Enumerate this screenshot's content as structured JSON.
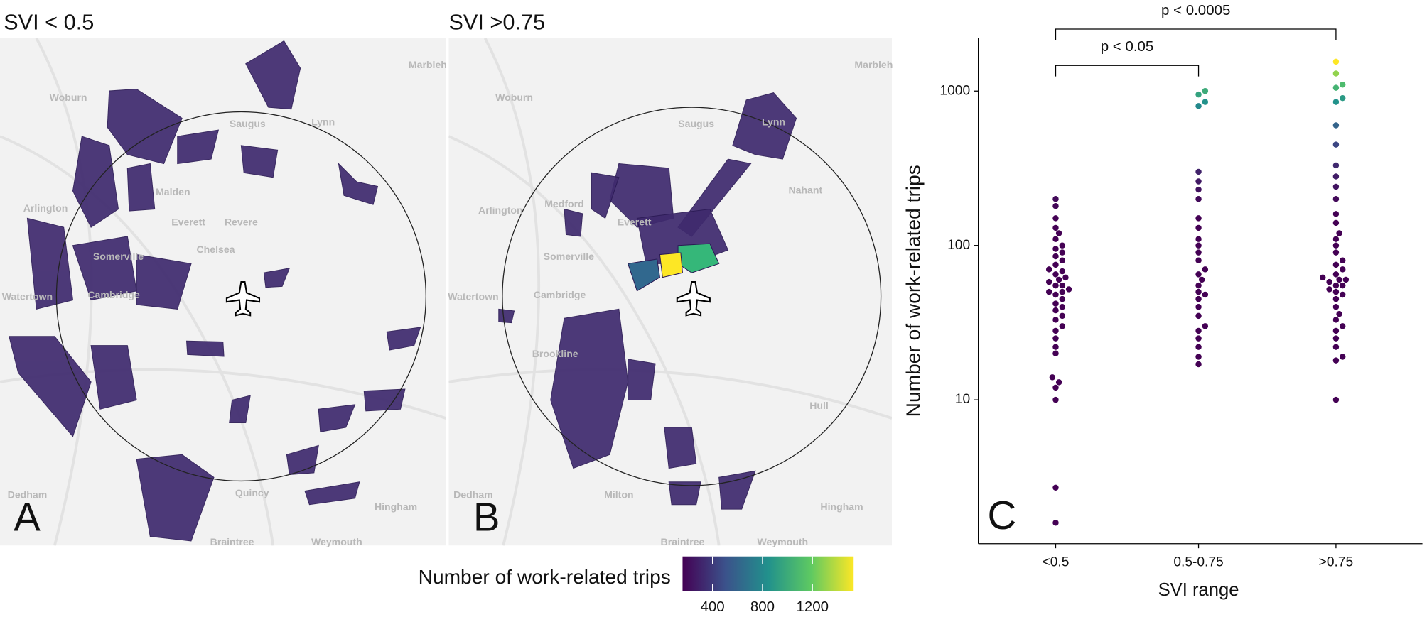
{
  "panels": [
    {
      "title": "SVI < 0.5",
      "letter": "A",
      "places": [
        "Woburn",
        "Malden",
        "Everett",
        "Revere",
        "Chelsea",
        "Somerville",
        "Cambridge",
        "Watertown",
        "Arlington",
        "Lynn",
        "Marbleh",
        "Saugus",
        "Quincy",
        "Dedham",
        "Hingham",
        "Braintree",
        "Weymouth"
      ]
    },
    {
      "title": "SVI >0.75",
      "letter": "B",
      "places": [
        "Woburn",
        "Medford",
        "Arlington",
        "Everett",
        "Somerville",
        "Cambridge",
        "Watertown",
        "Brookline",
        "Nahant",
        "Lynn",
        "Marbleh",
        "Saugus",
        "Hull",
        "Milton",
        "Hingham",
        "Dedham",
        "Braintree",
        "Weymouth"
      ]
    }
  ],
  "colorbar": {
    "title": "Number of work-related trips",
    "lim": [
      160,
      1530
    ],
    "ticks": [
      400,
      800,
      1200
    ],
    "colormap": "viridis"
  },
  "chart_data": {
    "type": "beeswarm",
    "letter": "C",
    "xlabel": "SVI range",
    "ylabel": "Number of work-related trips",
    "categories": [
      "<0.5",
      "0.5-0.75",
      ">0.75"
    ],
    "values": [
      [
        1.6,
        2.7,
        10,
        12,
        13,
        14,
        20,
        22,
        25,
        28,
        30,
        33,
        35,
        38,
        40,
        42,
        45,
        48,
        50,
        50,
        52,
        55,
        55,
        58,
        60,
        62,
        65,
        68,
        70,
        75,
        80,
        85,
        90,
        95,
        100,
        110,
        120,
        130,
        150,
        180,
        200
      ],
      [
        17,
        19,
        22,
        25,
        28,
        30,
        35,
        40,
        45,
        48,
        50,
        55,
        60,
        65,
        70,
        80,
        90,
        100,
        110,
        130,
        150,
        200,
        230,
        260,
        300,
        800,
        850,
        950,
        1000
      ],
      [
        10,
        18,
        19,
        22,
        25,
        28,
        30,
        33,
        36,
        40,
        45,
        48,
        50,
        52,
        55,
        55,
        58,
        60,
        60,
        62,
        65,
        70,
        75,
        80,
        90,
        100,
        110,
        120,
        140,
        160,
        200,
        240,
        280,
        330,
        450,
        600,
        850,
        900,
        1050,
        1100,
        1300,
        1550
      ]
    ],
    "log_y": true,
    "ylim": [
      1.17,
      2200
    ],
    "yticks": [
      10,
      100,
      1000
    ],
    "annotations": [
      {
        "text": "p < 0.05",
        "from": 0,
        "to": 1
      },
      {
        "text": "p < 0.0005",
        "from": 0,
        "to": 2
      }
    ]
  }
}
